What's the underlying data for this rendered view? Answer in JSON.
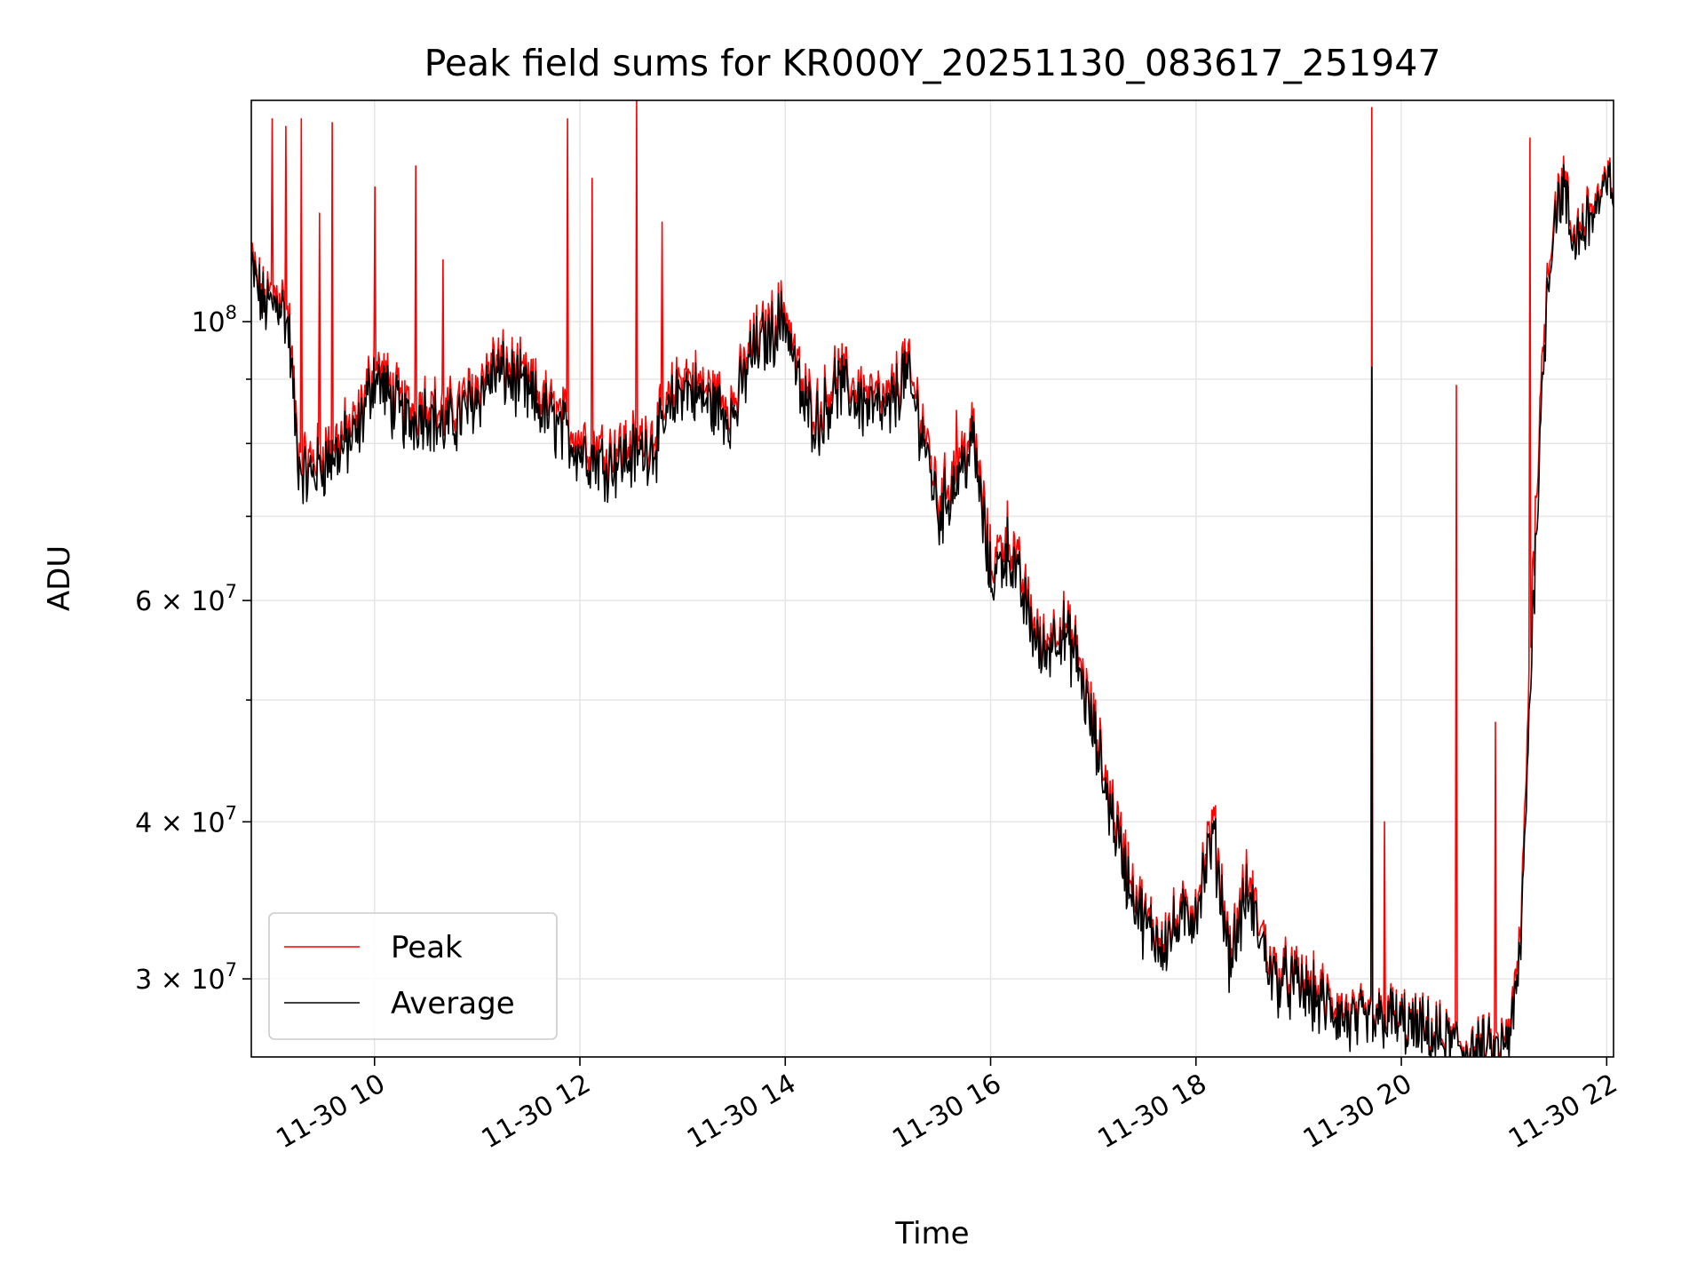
{
  "chart_data": {
    "type": "line",
    "title": "Peak field sums for KR000Y_20251130_083617_251947",
    "xlabel": "Time",
    "ylabel": "ADU",
    "y_scale": "log",
    "xlim": [
      "2025-11-30 08:48",
      "2025-11-30 22:04"
    ],
    "ylim": [
      26000000,
      150000000
    ],
    "x_ticks": [
      {
        "value": "2025-11-30 10:00",
        "label": "11-30 10"
      },
      {
        "value": "2025-11-30 12:00",
        "label": "11-30 12"
      },
      {
        "value": "2025-11-30 14:00",
        "label": "11-30 14"
      },
      {
        "value": "2025-11-30 16:00",
        "label": "11-30 16"
      },
      {
        "value": "2025-11-30 18:00",
        "label": "11-30 18"
      },
      {
        "value": "2025-11-30 20:00",
        "label": "11-30 20"
      },
      {
        "value": "2025-11-30 22:00",
        "label": "11-30 22"
      }
    ],
    "y_major_ticks": [
      {
        "value": 100000000,
        "base": "10",
        "exp": "8"
      },
      {
        "value": 60000000,
        "base": "6 × 10",
        "exp": "7"
      },
      {
        "value": 40000000,
        "base": "4 × 10",
        "exp": "7"
      },
      {
        "value": 30000000,
        "base": "3 × 10",
        "exp": "7"
      }
    ],
    "y_minor_ticks": [
      90000000,
      80000000,
      70000000,
      50000000
    ],
    "grid": true,
    "legend_position": "lower-left",
    "series": [
      {
        "name": "Peak",
        "color": "#ff0000",
        "x": [
          "2025-11-30 08:48",
          "2025-11-30 08:55",
          "2025-11-30 09:00",
          "2025-11-30 09:05",
          "2025-11-30 09:10",
          "2025-11-30 09:15",
          "2025-11-30 09:20",
          "2025-11-30 09:30",
          "2025-11-30 09:40",
          "2025-11-30 09:50",
          "2025-11-30 10:00",
          "2025-11-30 10:10",
          "2025-11-30 10:20",
          "2025-11-30 10:30",
          "2025-11-30 10:40",
          "2025-11-30 10:50",
          "2025-11-30 11:00",
          "2025-11-30 11:10",
          "2025-11-30 11:20",
          "2025-11-30 11:30",
          "2025-11-30 11:45",
          "2025-11-30 12:00",
          "2025-11-30 12:15",
          "2025-11-30 12:30",
          "2025-11-30 12:45",
          "2025-11-30 13:00",
          "2025-11-30 13:15",
          "2025-11-30 13:30",
          "2025-11-30 13:40",
          "2025-11-30 13:50",
          "2025-11-30 14:00",
          "2025-11-30 14:10",
          "2025-11-30 14:20",
          "2025-11-30 14:30",
          "2025-11-30 14:45",
          "2025-11-30 15:00",
          "2025-11-30 15:10",
          "2025-11-30 15:20",
          "2025-11-30 15:30",
          "2025-11-30 15:40",
          "2025-11-30 15:50",
          "2025-11-30 16:00",
          "2025-11-30 16:10",
          "2025-11-30 16:20",
          "2025-11-30 16:30",
          "2025-11-30 16:40",
          "2025-11-30 16:50",
          "2025-11-30 17:00",
          "2025-11-30 17:10",
          "2025-11-30 17:20",
          "2025-11-30 17:30",
          "2025-11-30 17:40",
          "2025-11-30 17:50",
          "2025-11-30 18:00",
          "2025-11-30 18:10",
          "2025-11-30 18:20",
          "2025-11-30 18:30",
          "2025-11-30 18:45",
          "2025-11-30 19:00",
          "2025-11-30 19:15",
          "2025-11-30 19:30",
          "2025-11-30 19:45",
          "2025-11-30 19:50",
          "2025-11-30 20:00",
          "2025-11-30 20:15",
          "2025-11-30 20:30",
          "2025-11-30 20:45",
          "2025-11-30 20:55",
          "2025-11-30 21:00",
          "2025-11-30 21:05",
          "2025-11-30 21:10",
          "2025-11-30 21:15",
          "2025-11-30 21:20",
          "2025-11-30 21:25",
          "2025-11-30 21:30",
          "2025-11-30 21:35",
          "2025-11-30 21:40",
          "2025-11-30 21:50",
          "2025-11-30 22:04"
        ],
        "y": [
          112000000,
          104000000,
          105000000,
          106000000,
          100000000,
          80000000,
          77000000,
          79000000,
          81000000,
          83000000,
          93000000,
          88000000,
          85000000,
          87000000,
          84000000,
          86000000,
          89000000,
          93000000,
          92000000,
          89000000,
          85000000,
          81000000,
          79000000,
          80000000,
          82000000,
          91000000,
          88000000,
          86000000,
          96000000,
          99000000,
          103000000,
          88000000,
          85000000,
          91000000,
          88000000,
          86000000,
          93000000,
          84000000,
          72000000,
          77000000,
          82000000,
          64000000,
          68000000,
          61000000,
          55000000,
          58000000,
          55000000,
          48000000,
          42000000,
          37000000,
          33500000,
          32500000,
          33500000,
          34500000,
          40000000,
          31500000,
          36000000,
          30500000,
          30000000,
          29000000,
          28000000,
          27800000,
          28300000,
          27800000,
          27200000,
          26800000,
          26400000,
          26300000,
          26700000,
          28000000,
          33000000,
          54000000,
          80000000,
          108000000,
          125000000,
          129000000,
          117000000,
          123000000,
          130000000
        ],
        "spikes": [
          {
            "x": "2025-11-30 09:00",
            "y": 145000000
          },
          {
            "x": "2025-11-30 09:08",
            "y": 143000000
          },
          {
            "x": "2025-11-30 09:17",
            "y": 145000000
          },
          {
            "x": "2025-11-30 09:28",
            "y": 122000000
          },
          {
            "x": "2025-11-30 09:35",
            "y": 144000000
          },
          {
            "x": "2025-11-30 10:00",
            "y": 128000000
          },
          {
            "x": "2025-11-30 10:24",
            "y": 133000000
          },
          {
            "x": "2025-11-30 10:40",
            "y": 112000000
          },
          {
            "x": "2025-11-30 11:53",
            "y": 145000000
          },
          {
            "x": "2025-11-30 12:07",
            "y": 130000000
          },
          {
            "x": "2025-11-30 12:33",
            "y": 150000000
          },
          {
            "x": "2025-11-30 12:48",
            "y": 120000000
          },
          {
            "x": "2025-11-30 15:40",
            "y": 85000000
          },
          {
            "x": "2025-11-30 19:43",
            "y": 148000000
          },
          {
            "x": "2025-11-30 19:50",
            "y": 40000000
          },
          {
            "x": "2025-11-30 20:32",
            "y": 89000000
          },
          {
            "x": "2025-11-30 20:55",
            "y": 48000000
          },
          {
            "x": "2025-11-30 21:15",
            "y": 140000000
          }
        ]
      },
      {
        "name": "Average",
        "color": "#000000",
        "x": [
          "2025-11-30 08:48",
          "2025-11-30 08:55",
          "2025-11-30 09:00",
          "2025-11-30 09:05",
          "2025-11-30 09:10",
          "2025-11-30 09:15",
          "2025-11-30 09:20",
          "2025-11-30 09:30",
          "2025-11-30 09:40",
          "2025-11-30 09:50",
          "2025-11-30 10:00",
          "2025-11-30 10:10",
          "2025-11-30 10:20",
          "2025-11-30 10:30",
          "2025-11-30 10:40",
          "2025-11-30 10:50",
          "2025-11-30 11:00",
          "2025-11-30 11:10",
          "2025-11-30 11:20",
          "2025-11-30 11:30",
          "2025-11-30 11:45",
          "2025-11-30 12:00",
          "2025-11-30 12:15",
          "2025-11-30 12:30",
          "2025-11-30 12:45",
          "2025-11-30 13:00",
          "2025-11-30 13:15",
          "2025-11-30 13:30",
          "2025-11-30 13:40",
          "2025-11-30 13:50",
          "2025-11-30 14:00",
          "2025-11-30 14:10",
          "2025-11-30 14:20",
          "2025-11-30 14:30",
          "2025-11-30 14:45",
          "2025-11-30 15:00",
          "2025-11-30 15:10",
          "2025-11-30 15:20",
          "2025-11-30 15:30",
          "2025-11-30 15:40",
          "2025-11-30 15:50",
          "2025-11-30 16:00",
          "2025-11-30 16:10",
          "2025-11-30 16:20",
          "2025-11-30 16:30",
          "2025-11-30 16:40",
          "2025-11-30 16:50",
          "2025-11-30 17:00",
          "2025-11-30 17:10",
          "2025-11-30 17:20",
          "2025-11-30 17:30",
          "2025-11-30 17:40",
          "2025-11-30 17:50",
          "2025-11-30 18:00",
          "2025-11-30 18:10",
          "2025-11-30 18:20",
          "2025-11-30 18:30",
          "2025-11-30 18:45",
          "2025-11-30 19:00",
          "2025-11-30 19:15",
          "2025-11-30 19:30",
          "2025-11-30 19:45",
          "2025-11-30 19:50",
          "2025-11-30 20:00",
          "2025-11-30 20:15",
          "2025-11-30 20:30",
          "2025-11-30 20:45",
          "2025-11-30 20:55",
          "2025-11-30 21:00",
          "2025-11-30 21:05",
          "2025-11-30 21:10",
          "2025-11-30 21:15",
          "2025-11-30 21:20",
          "2025-11-30 21:25",
          "2025-11-30 21:30",
          "2025-11-30 21:35",
          "2025-11-30 21:40",
          "2025-11-30 21:50",
          "2025-11-30 22:04"
        ],
        "y": [
          110000000,
          103000000,
          103000000,
          104000000,
          98000000,
          78000000,
          75000000,
          77000000,
          79000000,
          81000000,
          91000000,
          86000000,
          83000000,
          85000000,
          82000000,
          84000000,
          87000000,
          91000000,
          90000000,
          87000000,
          83000000,
          79000000,
          77000000,
          78000000,
          80000000,
          89000000,
          86000000,
          84000000,
          94000000,
          97000000,
          101000000,
          86000000,
          83000000,
          89000000,
          86000000,
          84000000,
          91000000,
          82000000,
          70000000,
          75000000,
          80000000,
          62000000,
          66000000,
          59500000,
          54000000,
          57000000,
          54000000,
          47000000,
          41000000,
          36000000,
          33000000,
          32000000,
          33000000,
          34000000,
          39000000,
          31000000,
          35000000,
          30000000,
          29500000,
          28500000,
          27600000,
          27600000,
          28000000,
          27600000,
          27000000,
          26600000,
          26200000,
          26100000,
          26400000,
          27500000,
          32000000,
          50000000,
          75000000,
          105000000,
          123000000,
          127000000,
          115000000,
          121000000,
          129000000
        ],
        "spikes": [
          {
            "x": "2025-11-30 19:43",
            "y": 92000000
          }
        ]
      }
    ]
  }
}
